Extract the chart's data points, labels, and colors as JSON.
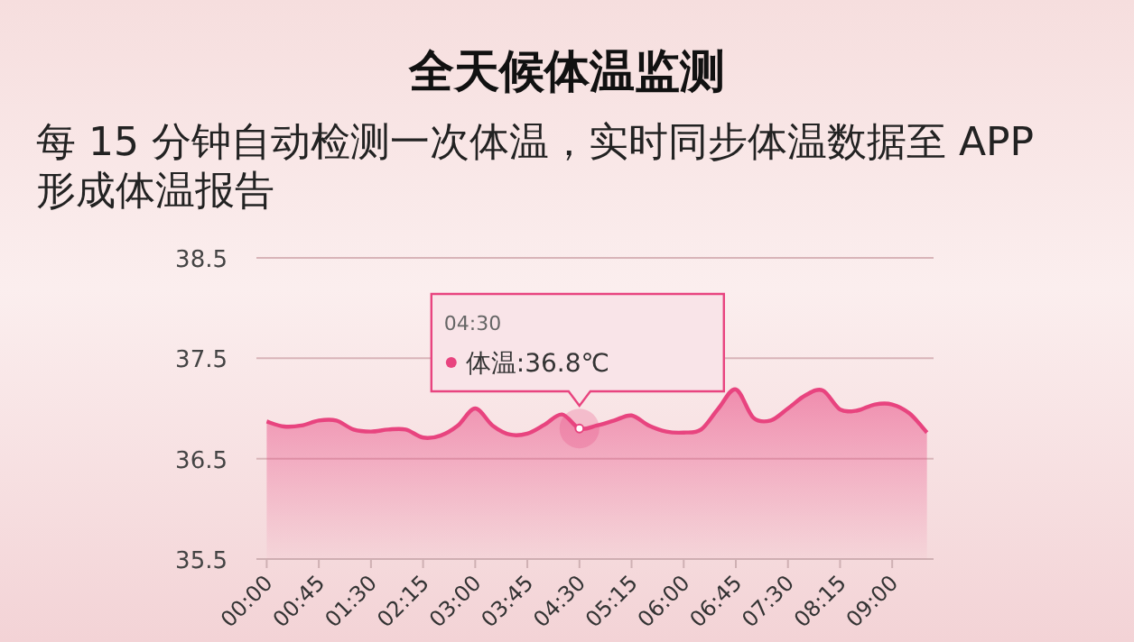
{
  "chart_data": {
    "type": "area",
    "title": "全天候体温监测",
    "subtitle": "每 15 分钟自动检测一次体温，实时同步体温数据至 APP 形成体温报告",
    "categories": [
      "00:00",
      null,
      null,
      "00:45",
      null,
      null,
      "01:30",
      null,
      null,
      "02:15",
      null,
      null,
      "03:00",
      null,
      null,
      "03:45",
      null,
      null,
      "04:30",
      null,
      null,
      "05:15",
      null,
      null,
      "06:00",
      null,
      null,
      "06:45",
      null,
      null,
      "07:30",
      null,
      null,
      "08:15",
      null,
      null,
      "09:00",
      null,
      null
    ],
    "values": [
      36.87,
      36.82,
      36.83,
      36.88,
      36.88,
      36.79,
      36.77,
      36.79,
      36.79,
      36.71,
      36.73,
      36.83,
      37.0,
      36.83,
      36.74,
      36.75,
      36.84,
      36.94,
      36.8,
      36.83,
      36.88,
      36.93,
      36.83,
      36.77,
      36.76,
      36.79,
      37.0,
      37.19,
      36.91,
      36.88,
      37.0,
      37.13,
      37.18,
      36.99,
      36.98,
      37.04,
      37.04,
      36.95,
      36.76
    ],
    "color": "#e8447f",
    "ylim": [
      35.5,
      38.5
    ],
    "yticks": [
      35.5,
      36.5,
      37.5,
      38.5
    ],
    "grid": "y",
    "legend": false,
    "marker": "none",
    "annotations": [
      "04:30",
      {
        "text": "体温:36.8℃",
        "x": "04:30",
        "y": 36.8
      }
    ]
  }
}
